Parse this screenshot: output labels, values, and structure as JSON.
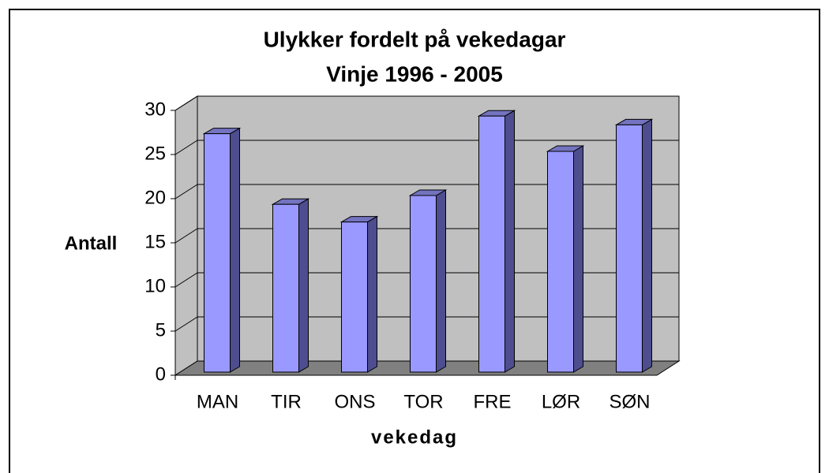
{
  "chart_data": {
    "type": "bar3d",
    "title": "Ulykker fordelt på vekedagar",
    "subtitle": "Vinje 1996 - 2005",
    "x_label": "vekedag",
    "y_label": "Antall",
    "categories": [
      "MAN",
      "TIR",
      "ONS",
      "TOR",
      "FRE",
      "LØR",
      "SØN"
    ],
    "values": [
      27,
      19,
      17,
      20,
      29,
      25,
      28
    ],
    "color": "#9999ff",
    "ylim": [
      0,
      30
    ],
    "yticks": [
      0,
      5,
      10,
      15,
      20,
      25,
      30
    ],
    "grid": true
  }
}
